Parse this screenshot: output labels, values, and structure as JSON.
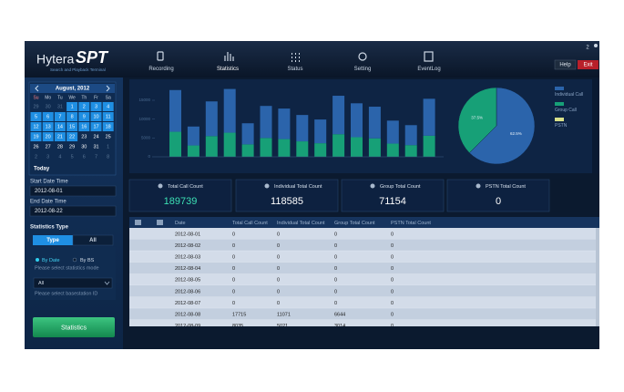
{
  "header": {
    "logo": "Hytera",
    "logo_accent": "SPT",
    "tagline": "Search and Playback Terminal",
    "nav": [
      "Recording",
      "Statistics",
      "Status",
      "Setting",
      "EventLog"
    ],
    "user_count": "2",
    "help": "Help",
    "exit": "Exit"
  },
  "calendar": {
    "month": "August, 2012",
    "weekdays": [
      "Su",
      "Mo",
      "Tu",
      "We",
      "Th",
      "Fr",
      "Sa"
    ],
    "weeks": [
      [
        29,
        30,
        31,
        1,
        2,
        3,
        4
      ],
      [
        5,
        6,
        7,
        8,
        9,
        10,
        11
      ],
      [
        12,
        13,
        14,
        15,
        16,
        17,
        18
      ],
      [
        19,
        20,
        21,
        22,
        23,
        24,
        25
      ],
      [
        26,
        27,
        28,
        29,
        30,
        31,
        1
      ],
      [
        2,
        3,
        4,
        5,
        6,
        7,
        8
      ]
    ],
    "today": "Today"
  },
  "filters": {
    "start_label": "Start Date Time",
    "start_value": "2012-08-01",
    "end_label": "End Date Time",
    "end_value": "2012-08-22",
    "type_label": "Statistics Type",
    "tabs": [
      "Type",
      "All"
    ],
    "modes": [
      "By Date",
      "By BS"
    ],
    "mode_hint": "Please select statistics mode",
    "basestation": "All",
    "basestation_hint": "Please select basestation ID",
    "button": "Statistics"
  },
  "chart_data": [
    {
      "type": "bar",
      "stacked": true,
      "yticks": [
        0,
        5000,
        10000,
        15000
      ],
      "series": [
        {
          "color": "#17a077",
          "values": [
            6644,
            3014,
            5500,
            6400,
            3300,
            5000,
            4700,
            4100,
            3600,
            6000,
            5200,
            4900,
            3500,
            3100,
            5600
          ]
        },
        {
          "color": "#2b64ab",
          "values": [
            11071,
            5021,
            9200,
            11600,
            5600,
            8500,
            8100,
            7000,
            6300,
            10200,
            9000,
            8400,
            6100,
            5300,
            9800
          ]
        }
      ]
    },
    {
      "type": "pie",
      "categories": [
        "Individual Call",
        "Group Call",
        "PSTN"
      ],
      "colors": [
        "#2b64ab",
        "#17a077",
        "#d8e08a"
      ],
      "values": [
        62.5,
        37.5,
        0
      ],
      "value_labels": [
        "62.5%",
        "37.5%",
        null
      ]
    }
  ],
  "cards": [
    {
      "label": "Total Call Count",
      "value": 189739
    },
    {
      "label": "Individual Total Count",
      "value": 118585
    },
    {
      "label": "Group Total Count",
      "value": 71154
    },
    {
      "label": "PSTN Total Count",
      "value": 0
    }
  ],
  "table": {
    "columns": [
      "Date",
      "Total Call Count",
      "Individual Total Count",
      "Group Total Count",
      "PSTN Total Count"
    ],
    "rows": [
      [
        "2012-08-01",
        0,
        0,
        0,
        0
      ],
      [
        "2012-08-02",
        0,
        0,
        0,
        0
      ],
      [
        "2012-08-03",
        0,
        0,
        0,
        0
      ],
      [
        "2012-08-04",
        0,
        0,
        0,
        0
      ],
      [
        "2012-08-05",
        0,
        0,
        0,
        0
      ],
      [
        "2012-08-06",
        0,
        0,
        0,
        0
      ],
      [
        "2012-08-07",
        0,
        0,
        0,
        0
      ],
      [
        "2012-08-08",
        17715,
        11071,
        6644,
        0
      ],
      [
        "2012-08-09",
        8035,
        5021,
        3014,
        0
      ]
    ]
  }
}
